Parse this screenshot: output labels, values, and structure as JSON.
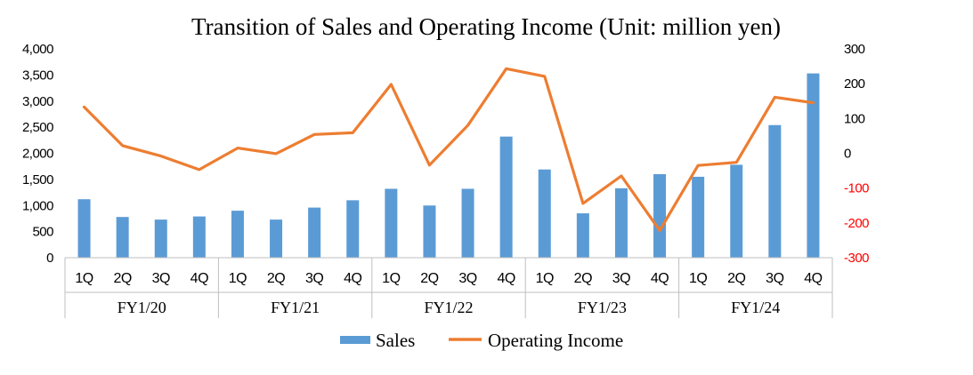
{
  "chart_data": {
    "type": "bar+line",
    "title": "Transition of Sales and Operating Income (Unit: million yen)",
    "categories": [
      "1Q",
      "2Q",
      "3Q",
      "4Q",
      "1Q",
      "2Q",
      "3Q",
      "4Q",
      "1Q",
      "2Q",
      "3Q",
      "4Q",
      "1Q",
      "2Q",
      "3Q",
      "4Q",
      "1Q",
      "2Q",
      "3Q",
      "4Q"
    ],
    "groups": [
      "FY1/20",
      "FY1/21",
      "FY1/22",
      "FY1/23",
      "FY1/24"
    ],
    "series": [
      {
        "name": "Sales",
        "kind": "bar",
        "axis": "left",
        "color": "#5b9bd5",
        "values": [
          1120,
          780,
          730,
          790,
          900,
          730,
          960,
          1100,
          1320,
          1000,
          1320,
          2320,
          1690,
          850,
          1330,
          1600,
          1550,
          1780,
          2540,
          3530
        ]
      },
      {
        "name": "Operating Income",
        "kind": "line",
        "axis": "right",
        "color": "#ed7d31",
        "values": [
          133,
          22,
          -8,
          -47,
          15,
          -1,
          54,
          59,
          198,
          -34,
          80,
          243,
          221,
          -144,
          -65,
          -222,
          -35,
          -26,
          161,
          145
        ]
      }
    ],
    "y_left": {
      "ticks": [
        "0",
        "500",
        "1,000",
        "1,500",
        "2,000",
        "2,500",
        "3,000",
        "3,500",
        "4,000"
      ],
      "ylim": [
        0,
        4000
      ]
    },
    "y_right": {
      "ticks": [
        "-300",
        "-200",
        "-100",
        "0",
        "100",
        "200",
        "300"
      ],
      "ylim": [
        -300,
        300
      ],
      "negative_color": "#ff0000"
    },
    "legend": {
      "position": "bottom",
      "entries": [
        "Sales",
        "Operating Income"
      ]
    },
    "grid": false
  }
}
